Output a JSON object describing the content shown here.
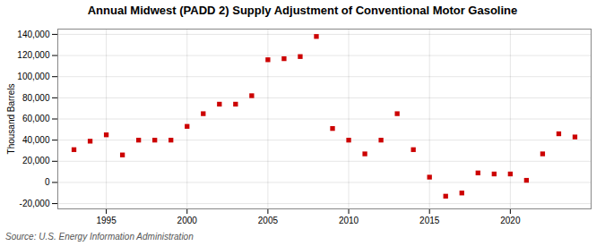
{
  "chart_data": {
    "type": "scatter",
    "title": "Annual Midwest (PADD 2) Supply Adjustment of Conventional Motor Gasoline",
    "ylabel": "Thousand Barrels",
    "source": "Source: U.S. Energy Information Administration",
    "color": "#cc0000",
    "marker": "square",
    "x": [
      1993,
      1994,
      1995,
      1996,
      1997,
      1998,
      1999,
      2000,
      2001,
      2002,
      2003,
      2004,
      2005,
      2006,
      2007,
      2008,
      2009,
      2010,
      2011,
      2012,
      2013,
      2014,
      2015,
      2016,
      2017,
      2018,
      2019,
      2020,
      2021,
      2022,
      2023,
      2024
    ],
    "values": [
      31000,
      39000,
      45000,
      26000,
      40000,
      40000,
      40000,
      53000,
      65000,
      74000,
      74000,
      82000,
      116000,
      117000,
      119000,
      138000,
      51000,
      40000,
      27000,
      40000,
      65000,
      31000,
      5000,
      -13000,
      -10000,
      9000,
      8000,
      8000,
      2000,
      27000,
      46000,
      43000
    ],
    "xlim": [
      1992.0,
      2025.0
    ],
    "xticks": [
      1995,
      2000,
      2005,
      2010,
      2015,
      2020
    ],
    "ylim": [
      -25000,
      145000
    ],
    "yticks": [
      {
        "value": -20000,
        "label": "-20,000"
      },
      0,
      {
        "value": 20000,
        "label": "20,000"
      },
      {
        "value": 40000,
        "label": "40,000"
      },
      {
        "value": 60000,
        "label": "60,000"
      },
      {
        "value": 80000,
        "label": "80,000"
      },
      {
        "value": 100000,
        "label": "100,000"
      },
      {
        "value": 120000,
        "label": "120,000"
      },
      {
        "value": 140000,
        "label": "140,000"
      }
    ],
    "grid": true
  }
}
